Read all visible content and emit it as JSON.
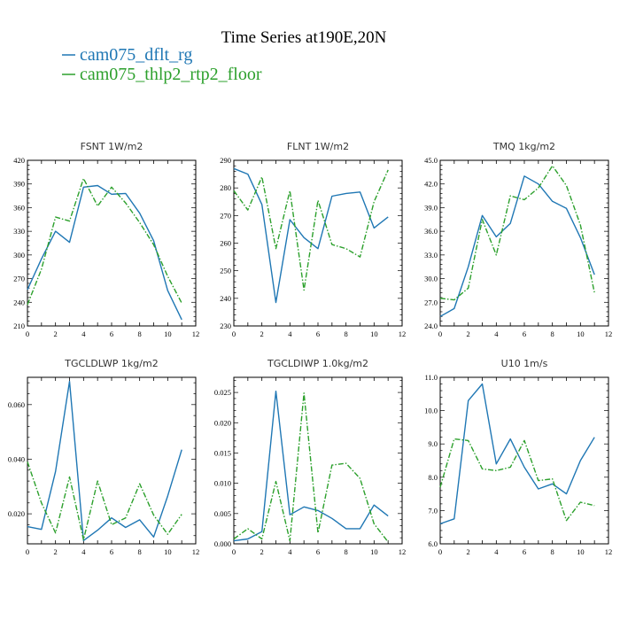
{
  "figure": {
    "title": "Time Series at190E,20N",
    "legend": [
      {
        "name": "cam075_dflt_rg",
        "color": "#1f77b4",
        "style": "solid"
      },
      {
        "name": "cam075_thlp2_rtp2_floor",
        "color": "#2ca02c",
        "style": "dashdot"
      }
    ]
  },
  "chart_data": [
    {
      "type": "line",
      "title": "FSNT   1W/m2",
      "x": [
        0,
        1,
        2,
        3,
        4,
        5,
        6,
        7,
        8,
        9,
        10,
        11
      ],
      "xlim": [
        0,
        12
      ],
      "xticks": [
        0,
        2,
        4,
        6,
        8,
        10,
        12
      ],
      "ylim": [
        210,
        420
      ],
      "yticks": [
        "210",
        "240",
        "270",
        "300",
        "330",
        "360",
        "390",
        "420"
      ],
      "grid": false,
      "series": [
        {
          "name": "cam075_dflt_rg",
          "values": [
            256,
            295,
            330,
            316,
            386,
            388,
            377,
            378,
            353,
            318,
            255,
            218
          ]
        },
        {
          "name": "cam075_thlp2_rtp2_floor",
          "values": [
            237,
            282,
            348,
            343,
            397,
            362,
            386,
            366,
            341,
            313,
            273,
            239
          ]
        }
      ]
    },
    {
      "type": "line",
      "title": "FLNT   1W/m2",
      "x": [
        0,
        1,
        2,
        3,
        4,
        5,
        6,
        7,
        8,
        9,
        10,
        11
      ],
      "xlim": [
        0,
        12
      ],
      "xticks": [
        0,
        2,
        4,
        6,
        8,
        10,
        12
      ],
      "ylim": [
        230,
        290
      ],
      "yticks": [
        "230",
        "240",
        "250",
        "260",
        "270",
        "280",
        "290"
      ],
      "grid": false,
      "series": [
        {
          "name": "cam075_dflt_rg",
          "values": [
            287,
            285,
            274,
            238.5,
            268.5,
            262,
            258,
            277,
            278,
            278.5,
            265.5,
            269.5
          ]
        },
        {
          "name": "cam075_thlp2_rtp2_floor",
          "values": [
            279,
            272,
            284,
            258,
            279,
            243,
            275.5,
            259.5,
            258,
            255,
            275,
            286.5
          ]
        }
      ]
    },
    {
      "type": "line",
      "title": "TMQ   1kg/m2",
      "x": [
        0,
        1,
        2,
        3,
        4,
        5,
        6,
        7,
        8,
        9,
        10,
        11
      ],
      "xlim": [
        0,
        12
      ],
      "xticks": [
        0,
        2,
        4,
        6,
        8,
        10,
        12
      ],
      "ylim": [
        24,
        45
      ],
      "yticks": [
        "24.0",
        "27.0",
        "30.0",
        "33.0",
        "36.0",
        "39.0",
        "42.0",
        "45.0"
      ],
      "grid": false,
      "series": [
        {
          "name": "cam075_dflt_rg",
          "values": [
            25.2,
            26.2,
            31.5,
            38.0,
            35.3,
            37.0,
            43.0,
            42.0,
            39.8,
            38.9,
            35.2,
            30.5
          ]
        },
        {
          "name": "cam075_thlp2_rtp2_floor",
          "values": [
            27.5,
            27.3,
            28.8,
            37.5,
            33.0,
            40.5,
            40.0,
            41.5,
            44.3,
            41.8,
            36.8,
            28.2
          ]
        }
      ]
    },
    {
      "type": "line",
      "title": "TGCLDLWP   1kg/m2",
      "x": [
        0,
        1,
        2,
        3,
        4,
        5,
        6,
        7,
        8,
        9,
        10,
        11
      ],
      "xlim": [
        0,
        12
      ],
      "xticks": [
        0,
        2,
        4,
        6,
        8,
        10,
        12
      ],
      "ylim": [
        0.009,
        0.07
      ],
      "yticks": [
        "0.020",
        "0.040",
        "0.060"
      ],
      "grid": false,
      "series": [
        {
          "name": "cam075_dflt_rg",
          "values": [
            0.0153,
            0.0143,
            0.0355,
            0.0685,
            0.0102,
            0.014,
            0.0185,
            0.015,
            0.0178,
            0.0115,
            0.0265,
            0.0435
          ]
        },
        {
          "name": "cam075_thlp2_rtp2_floor",
          "values": [
            0.039,
            0.024,
            0.013,
            0.0335,
            0.0105,
            0.032,
            0.016,
            0.0185,
            0.031,
            0.0195,
            0.0125,
            0.0198
          ]
        }
      ]
    },
    {
      "type": "line",
      "title": "TGCLDIWP   1.0kg/m2",
      "x": [
        0,
        1,
        2,
        3,
        4,
        5,
        6,
        7,
        8,
        9,
        10,
        11
      ],
      "xlim": [
        0,
        12
      ],
      "xticks": [
        0,
        2,
        4,
        6,
        8,
        10,
        12
      ],
      "ylim": [
        0,
        0.0275
      ],
      "yticks": [
        "0.000",
        "0.005",
        "0.010",
        "0.015",
        "0.020",
        "0.025"
      ],
      "grid": false,
      "series": [
        {
          "name": "cam075_dflt_rg",
          "values": [
            0.0005,
            0.0008,
            0.002,
            0.0252,
            0.0048,
            0.0061,
            0.0055,
            0.0042,
            0.0025,
            0.0025,
            0.0064,
            0.0046
          ]
        },
        {
          "name": "cam075_thlp2_rtp2_floor",
          "values": [
            0.0008,
            0.0025,
            0.0008,
            0.0103,
            0.0005,
            0.0249,
            0.0018,
            0.013,
            0.0133,
            0.0108,
            0.0033,
            0.0003
          ]
        }
      ]
    },
    {
      "type": "line",
      "title": "U10   1m/s",
      "x": [
        0,
        1,
        2,
        3,
        4,
        5,
        6,
        7,
        8,
        9,
        10,
        11
      ],
      "xlim": [
        0,
        12
      ],
      "xticks": [
        0,
        2,
        4,
        6,
        8,
        10,
        12
      ],
      "ylim": [
        6,
        11
      ],
      "yticks": [
        "6.0",
        "7.0",
        "8.0",
        "9.0",
        "10.0",
        "11.0"
      ],
      "grid": false,
      "series": [
        {
          "name": "cam075_dflt_rg",
          "values": [
            6.6,
            6.75,
            10.3,
            10.8,
            8.4,
            9.15,
            8.3,
            7.65,
            7.8,
            7.5,
            8.5,
            9.2
          ]
        },
        {
          "name": "cam075_thlp2_rtp2_floor",
          "values": [
            7.7,
            9.15,
            9.1,
            8.25,
            8.2,
            8.3,
            9.1,
            7.9,
            7.95,
            6.7,
            7.25,
            7.15
          ]
        }
      ]
    }
  ]
}
